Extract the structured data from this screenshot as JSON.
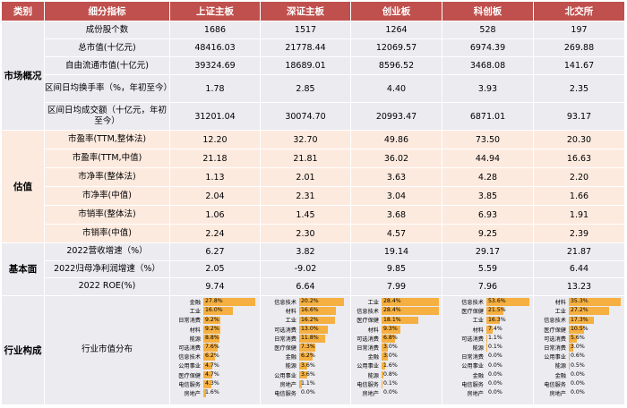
{
  "headers": [
    "类别",
    "细分指标",
    "上证主板",
    "深证主板",
    "创业板",
    "科创板",
    "北交所"
  ],
  "sections": [
    {
      "category": "市场概况",
      "rows": [
        {
          "metric": "成份股个数",
          "values": [
            "1686",
            "1517",
            "1264",
            "528",
            "197"
          ]
        },
        {
          "metric": "总市值(十亿元)",
          "values": [
            "48416.03",
            "21778.44",
            "12069.57",
            "6974.39",
            "269.88"
          ]
        },
        {
          "metric": "自由流通市值(十亿元)",
          "values": [
            "39324.69",
            "18689.01",
            "8596.52",
            "3468.08",
            "141.67"
          ]
        },
        {
          "metric": "区间日均换手率（%，年初至今）",
          "values": [
            "1.78",
            "2.85",
            "4.40",
            "3.93",
            "2.35"
          ]
        },
        {
          "metric": "区间日均成交额（十亿元，年初至今）",
          "values": [
            "31201.04",
            "30074.70",
            "20993.47",
            "6871.01",
            "93.17"
          ]
        }
      ]
    },
    {
      "category": "估值",
      "rows": [
        {
          "metric": "市盈率(TTM,整体法)",
          "values": [
            "12.20",
            "32.70",
            "49.86",
            "73.50",
            "20.30"
          ]
        },
        {
          "metric": "市盈率(TTM,中值)",
          "values": [
            "21.18",
            "21.81",
            "36.02",
            "44.94",
            "16.63"
          ]
        },
        {
          "metric": "市净率(整体法)",
          "values": [
            "1.13",
            "2.01",
            "3.63",
            "4.28",
            "2.20"
          ]
        },
        {
          "metric": "市净率(中值)",
          "values": [
            "2.04",
            "2.31",
            "3.04",
            "3.85",
            "1.66"
          ]
        },
        {
          "metric": "市销率(整体法)",
          "values": [
            "1.06",
            "1.45",
            "3.68",
            "6.93",
            "1.91"
          ]
        },
        {
          "metric": "市销率(中值)",
          "values": [
            "2.24",
            "2.30",
            "4.57",
            "9.25",
            "2.39"
          ]
        }
      ]
    },
    {
      "category": "基本面",
      "rows": [
        {
          "metric": "2022营收增速（%）",
          "values": [
            "6.27",
            "3.82",
            "19.14",
            "29.17",
            "21.87"
          ]
        },
        {
          "metric": "2022归母净利润增速（%）",
          "values": [
            "2.05",
            "-9.02",
            "9.85",
            "5.59",
            "6.44"
          ]
        },
        {
          "metric": "2022 ROE(%)",
          "values": [
            "9.74",
            "6.64",
            "7.99",
            "7.96",
            "13.23"
          ]
        }
      ]
    }
  ],
  "industry": {
    "category": "行业构成",
    "metric": "行业市值分布",
    "boards": [
      {
        "items": [
          {
            "name": "金融",
            "pct": 27.8,
            "label": "27.8%"
          },
          {
            "name": "工业",
            "pct": 16.0,
            "label": "16.0%"
          },
          {
            "name": "日常消费",
            "pct": 9.2,
            "label": "9.2%"
          },
          {
            "name": "材料",
            "pct": 9.2,
            "label": "9.2%"
          },
          {
            "name": "能源",
            "pct": 8.8,
            "label": "8.8%"
          },
          {
            "name": "可选消费",
            "pct": 7.6,
            "label": "7.6%"
          },
          {
            "name": "信息技术",
            "pct": 6.2,
            "label": "6.2%"
          },
          {
            "name": "公用事业",
            "pct": 4.7,
            "label": "4.7%"
          },
          {
            "name": "医疗保健",
            "pct": 4.7,
            "label": "4.7%"
          },
          {
            "name": "电信服务",
            "pct": 4.3,
            "label": "4.3%"
          },
          {
            "name": "房地产",
            "pct": 1.6,
            "label": "1.6%"
          }
        ]
      },
      {
        "items": [
          {
            "name": "信息技术",
            "pct": 20.2,
            "label": "20.2%"
          },
          {
            "name": "材料",
            "pct": 16.6,
            "label": "16.6%"
          },
          {
            "name": "工业",
            "pct": 16.2,
            "label": "16.2%"
          },
          {
            "name": "可选消费",
            "pct": 13.0,
            "label": "13.0%"
          },
          {
            "name": "日常消费",
            "pct": 11.8,
            "label": "11.8%"
          },
          {
            "name": "医疗保健",
            "pct": 7.3,
            "label": "7.3%"
          },
          {
            "name": "金融",
            "pct": 6.2,
            "label": "6.2%"
          },
          {
            "name": "能源",
            "pct": 3.6,
            "label": "3.6%"
          },
          {
            "name": "公用事业",
            "pct": 3.6,
            "label": "3.6%"
          },
          {
            "name": "房地产",
            "pct": 1.1,
            "label": "1.1%"
          },
          {
            "name": "电信服务",
            "pct": 0.0,
            "label": "0.0%"
          }
        ]
      },
      {
        "items": [
          {
            "name": "工业",
            "pct": 28.4,
            "label": "28.4%"
          },
          {
            "name": "信息技术",
            "pct": 28.4,
            "label": "28.4%"
          },
          {
            "name": "医疗保健",
            "pct": 18.1,
            "label": "18.1%"
          },
          {
            "name": "材料",
            "pct": 9.3,
            "label": "9.3%"
          },
          {
            "name": "可选消费",
            "pct": 6.8,
            "label": "6.8%"
          },
          {
            "name": "日常消费",
            "pct": 3.0,
            "label": "3.0%"
          },
          {
            "name": "金融",
            "pct": 3.0,
            "label": "3.0%"
          },
          {
            "name": "公用事业",
            "pct": 1.6,
            "label": "1.6%"
          },
          {
            "name": "能源",
            "pct": 0.8,
            "label": "0.8%"
          },
          {
            "name": "电信服务",
            "pct": 0.1,
            "label": "0.1%"
          },
          {
            "name": "房地产",
            "pct": 0.0,
            "label": "0.0%"
          }
        ]
      },
      {
        "items": [
          {
            "name": "信息技术",
            "pct": 53.6,
            "label": "53.6%"
          },
          {
            "name": "医疗保健",
            "pct": 21.5,
            "label": "21.5%"
          },
          {
            "name": "工业",
            "pct": 16.3,
            "label": "16.3%"
          },
          {
            "name": "材料",
            "pct": 7.4,
            "label": "7.4%"
          },
          {
            "name": "可选消费",
            "pct": 1.1,
            "label": "1.1%"
          },
          {
            "name": "能源",
            "pct": 0.1,
            "label": "0.1%"
          },
          {
            "name": "日常消费",
            "pct": 0.0,
            "label": "0.0%"
          },
          {
            "name": "公用事业",
            "pct": 0.0,
            "label": "0.0%"
          },
          {
            "name": "金融",
            "pct": 0.0,
            "label": "0.0%"
          },
          {
            "name": "电信服务",
            "pct": 0.0,
            "label": "0.0%"
          },
          {
            "name": "房地产",
            "pct": 0.0,
            "label": "0.0%"
          }
        ]
      },
      {
        "items": [
          {
            "name": "材料",
            "pct": 35.3,
            "label": "35.3%"
          },
          {
            "name": "工业",
            "pct": 27.2,
            "label": "27.2%"
          },
          {
            "name": "信息技术",
            "pct": 17.3,
            "label": "17.3%"
          },
          {
            "name": "医疗保健",
            "pct": 10.5,
            "label": "10.5%"
          },
          {
            "name": "可选消费",
            "pct": 5.6,
            "label": "5.6%"
          },
          {
            "name": "日常消费",
            "pct": 3.0,
            "label": "3.0%"
          },
          {
            "name": "公用事业",
            "pct": 0.6,
            "label": "0.6%"
          },
          {
            "name": "能源",
            "pct": 0.5,
            "label": "0.5%"
          },
          {
            "name": "金融",
            "pct": 0.0,
            "label": "0.0%"
          },
          {
            "name": "电信服务",
            "pct": 0.0,
            "label": "0.0%"
          },
          {
            "name": "房地产",
            "pct": 0.0,
            "label": "0.0%"
          }
        ]
      }
    ]
  },
  "colors": {
    "header_bg": "#c0504d",
    "band_gray": "#ebebf0",
    "band_peach": "#fdeadf",
    "bar": "#f5b041"
  }
}
